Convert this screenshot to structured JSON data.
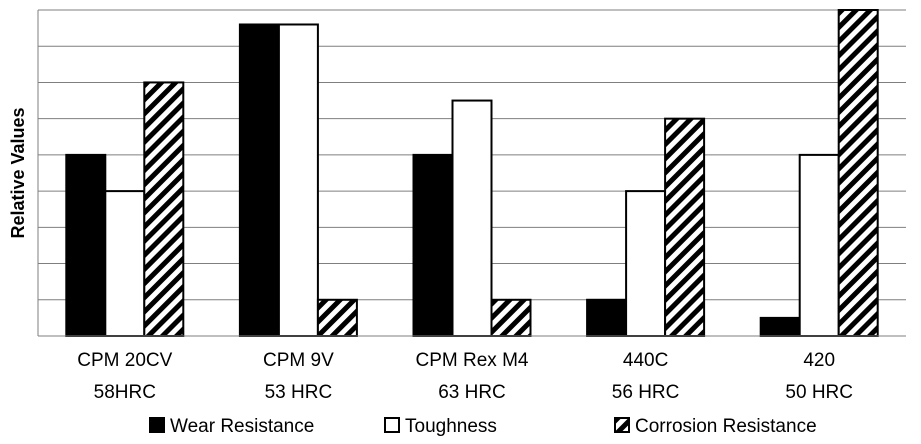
{
  "chart_data": {
    "type": "bar",
    "title": "",
    "xlabel": "",
    "ylabel": "Relative Values",
    "ylim": [
      0,
      9
    ],
    "grid": true,
    "legend_position": "bottom",
    "categories": [
      [
        "CPM 20CV",
        "58HRC"
      ],
      [
        "CPM 9V",
        "53 HRC"
      ],
      [
        "CPM Rex M4",
        "63 HRC"
      ],
      [
        "440C",
        "56 HRC"
      ],
      [
        "420",
        "50 HRC"
      ]
    ],
    "series": [
      {
        "name": "Wear Resistance",
        "values": [
          5,
          8.6,
          5,
          1,
          0.5
        ],
        "fill": "#000000"
      },
      {
        "name": "Toughness",
        "values": [
          4,
          8.6,
          6.5,
          4,
          5
        ],
        "fill": "#ffffff"
      },
      {
        "name": "Corrosion Resistance",
        "values": [
          7,
          1,
          1,
          6,
          9
        ],
        "fill": "hatch"
      }
    ]
  }
}
